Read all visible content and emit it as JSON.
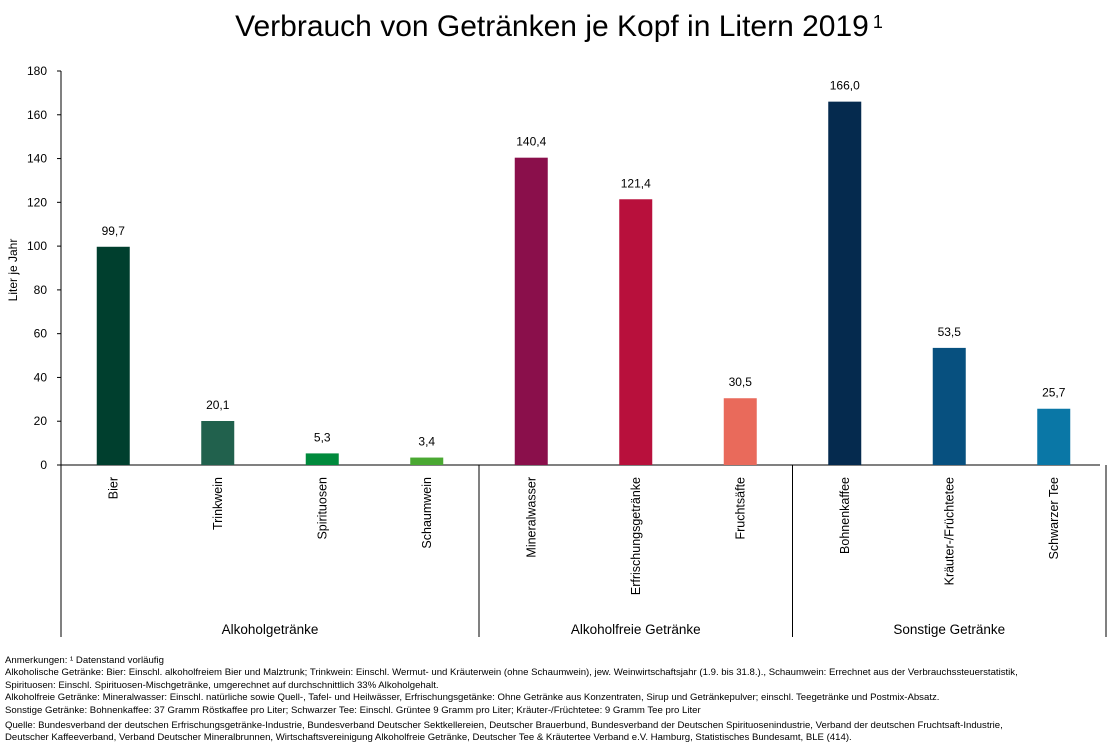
{
  "chart_data": {
    "type": "bar",
    "title": "Verbrauch von Getränken je Kopf in Litern 2019",
    "title_sup": "1",
    "ylabel": "Liter je Jahr",
    "ylim": [
      0,
      180
    ],
    "yticks": [
      "0",
      "20",
      "40",
      "60",
      "80",
      "100",
      "120",
      "140",
      "160",
      "180"
    ],
    "grid": false,
    "categories": [
      "Bier",
      "Trinkwein",
      "Spirituosen",
      "Schaumwein",
      "Mineralwasser",
      "Erfrischungsgetränke",
      "Fruchtsäfte",
      "Bohnenkaffee",
      "Kräuter-/Früchtetee",
      "Schwarzer Tee"
    ],
    "values": [
      99.7,
      20.1,
      5.3,
      3.4,
      140.4,
      121.4,
      30.5,
      166.0,
      53.5,
      25.7
    ],
    "value_labels": [
      "99,7",
      "20,1",
      "5,3",
      "3,4",
      "140,4",
      "121,4",
      "30,5",
      "166,0",
      "53,5",
      "25,7"
    ],
    "colors": [
      "#003f2e",
      "#21614d",
      "#008a3c",
      "#4aa832",
      "#8a0f4b",
      "#b8103c",
      "#e96a5b",
      "#052a4e",
      "#07507f",
      "#0a77a6"
    ],
    "groups": [
      {
        "label": "Alkoholgetränke",
        "count": 4
      },
      {
        "label": "Alkoholfreie Getränke",
        "count": 3
      },
      {
        "label": "Sonstige Getränke",
        "count": 3
      }
    ]
  },
  "notes": {
    "line1": "Anmerkungen: ¹ Datenstand vorläufig",
    "line2": "Alkoholische Getränke: Bier: Einschl. alkoholfreiem Bier und Malztrunk; Trinkwein: Einschl. Wermut- und Kräuterwein (ohne Schaumwein), jew. Weinwirtschaftsjahr (1.9. bis 31.8.)., Schaumwein: Errechnet aus der Verbrauchssteuerstatistik,",
    "line3": "Spirituosen: Einschl. Spirituosen-Mischgetränke, umgerechnet auf durchschnittlich 33% Alkoholgehalt.",
    "line4": "Alkoholfreie Getränke: Mineralwasser: Einschl. natürliche sowie Quell-, Tafel- und Heilwässer, Erfrischungsgetänke: Ohne Getränke aus Konzentraten, Sirup und Getränkepulver; einschl. Teegetränke und Postmix-Absatz.",
    "line5": "Sonstige Getränke: Bohnenkaffee: 37 Gramm Röstkaffee pro Liter; Schwarzer Tee: Einschl. Grüntee 9 Gramm pro Liter; Kräuter-/Früchtetee:  9 Gramm Tee pro Liter",
    "line6": "Quelle: Bundesverband der deutschen Erfrischungsgetränke-Industrie, Bundesverband Deutscher Sektkellereien, Deutscher Brauerbund, Bundesverband der Deutschen Spirituosenindustrie, Verband der deutschen Fruchtsaft-Industrie,",
    "line7": "Deutscher Kaffeeverband, Verband Deutscher Mineralbrunnen, Wirtschaftsvereinigung Alkoholfreie Getränke, Deutscher Tee & Kräutertee Verband e.V. Hamburg, Statistisches Bundesamt, BLE (414)."
  }
}
